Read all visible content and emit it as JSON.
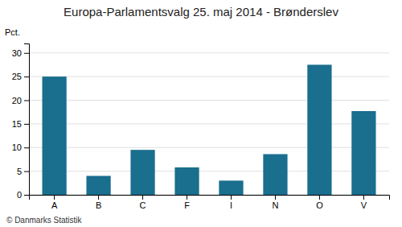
{
  "chart_data": {
    "type": "bar",
    "title": "Europa-Parlamentsvalg 25. maj 2014 - Brønderslev",
    "categories": [
      "A",
      "B",
      "C",
      "F",
      "I",
      "N",
      "O",
      "V"
    ],
    "values": [
      25.0,
      4.0,
      9.5,
      5.8,
      3.0,
      8.6,
      27.5,
      17.7
    ],
    "color": "#1a6e8e",
    "ylabel": "Pct.",
    "footer": "© Danmarks Statistik",
    "ylim": [
      0,
      32
    ],
    "yticks": [
      0,
      5,
      10,
      15,
      20,
      25,
      30
    ],
    "grid": true
  }
}
